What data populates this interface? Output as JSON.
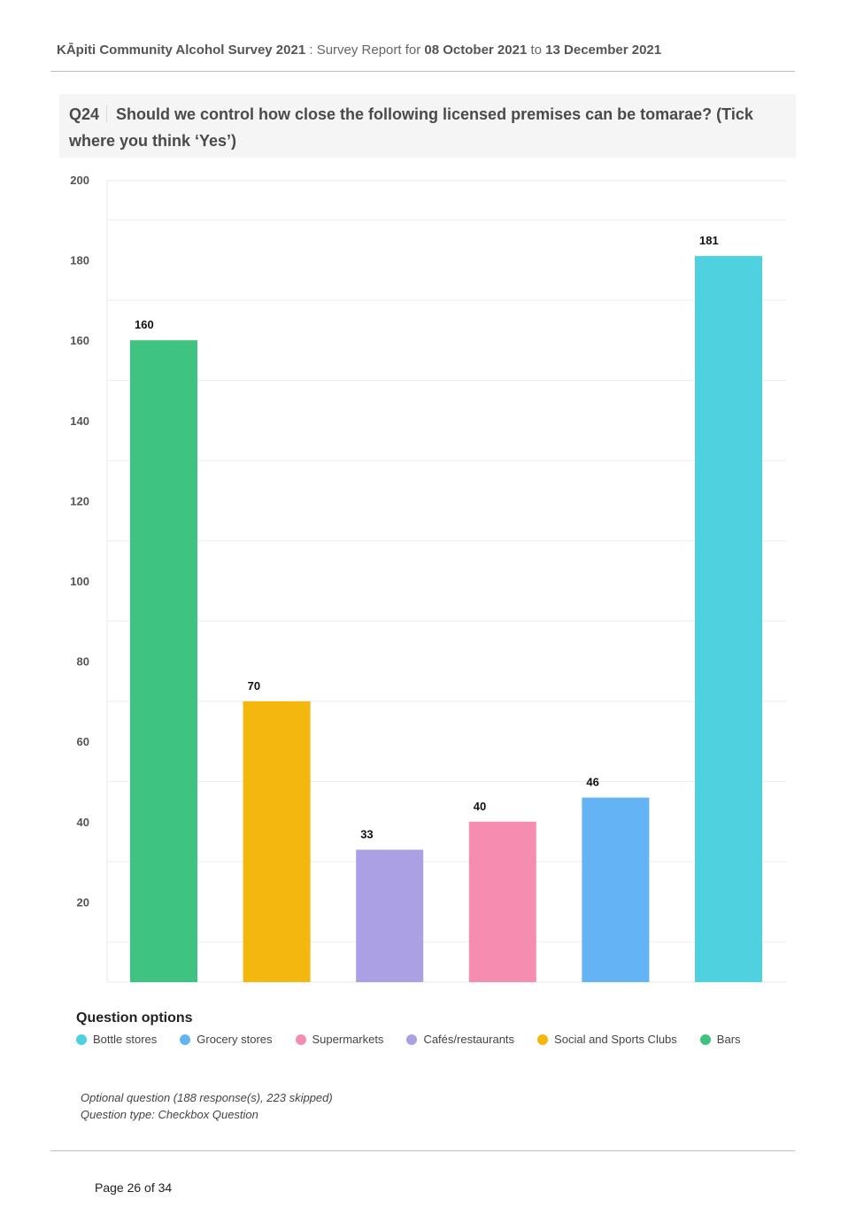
{
  "header": {
    "survey_name": "KĀpiti Community Alcohol Survey 2021",
    "separator": " : ",
    "report_prefix": "Survey Report for ",
    "date_from": "08 October 2021",
    "date_to_word": " to ",
    "date_to": "13 December 2021"
  },
  "question": {
    "number": "Q24",
    "text": "Should we control how close the following licensed premises can be tomarae?  (Tick where you think ‘Yes’)"
  },
  "chart_data": {
    "type": "bar",
    "categories": [
      "Bars",
      "Social and Sports Clubs",
      "Cafés/restaurants",
      "Supermarkets",
      "Grocery stores",
      "Bottle stores"
    ],
    "values": [
      160,
      70,
      33,
      40,
      46,
      181
    ],
    "colors": [
      "#3fc380",
      "#f4b70e",
      "#aaa0e3",
      "#f48db0",
      "#63b3f5",
      "#4fd1e0"
    ],
    "ylim": [
      0,
      200
    ],
    "yticks": [
      20,
      40,
      60,
      80,
      100,
      120,
      140,
      160,
      180,
      200
    ],
    "data_labels": true,
    "grid": true,
    "legend": {
      "title": "Question options",
      "placement": "bottom-left",
      "items": [
        {
          "label": "Bottle stores",
          "color": "#4fd1e0"
        },
        {
          "label": "Grocery stores",
          "color": "#63b3f5"
        },
        {
          "label": "Supermarkets",
          "color": "#f48db0"
        },
        {
          "label": "Cafés/restaurants",
          "color": "#aaa0e3"
        },
        {
          "label": "Social and Sports Clubs",
          "color": "#f4b70e"
        },
        {
          "label": "Bars",
          "color": "#3fc380"
        }
      ]
    }
  },
  "notes": {
    "line1": "Optional question (188 response(s), 223 skipped)",
    "line2": "Question type: Checkbox Question"
  },
  "footer": {
    "page": "Page 26 of 34"
  }
}
